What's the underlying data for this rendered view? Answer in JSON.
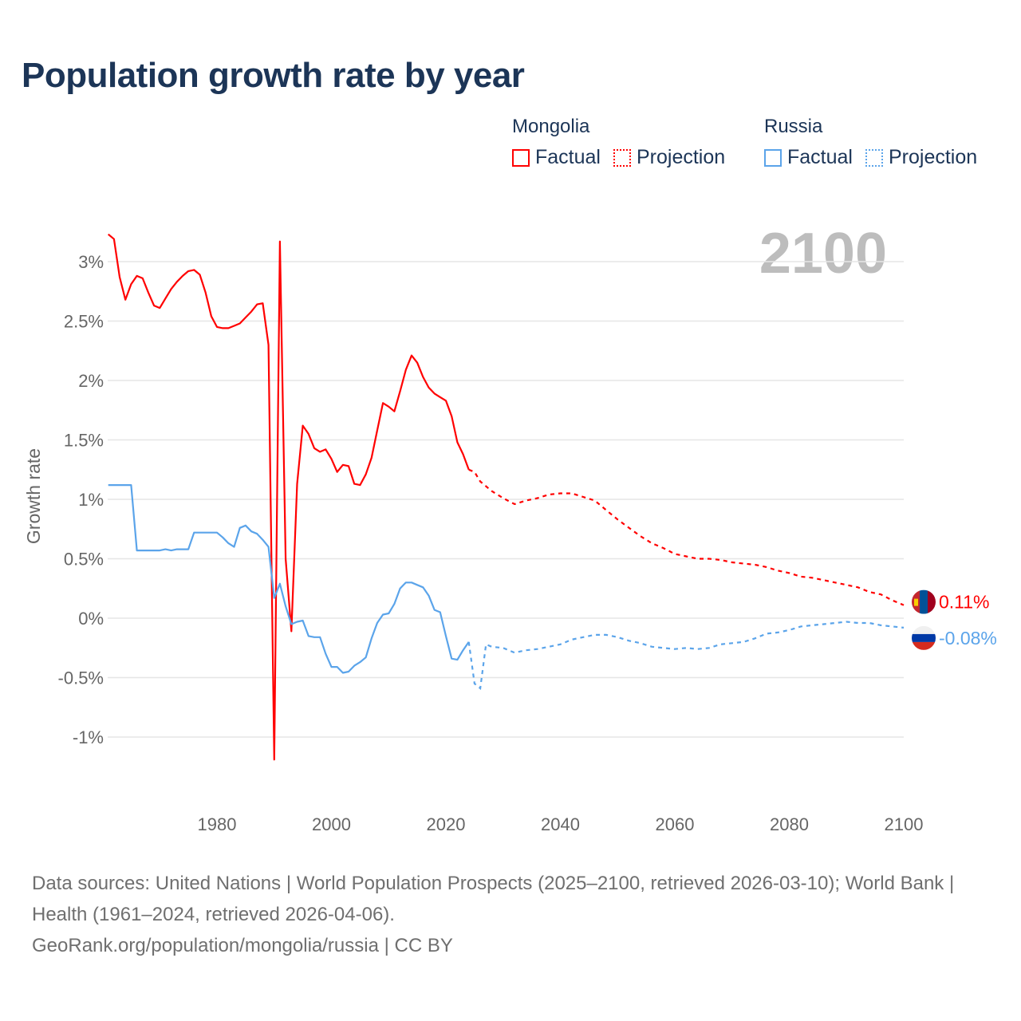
{
  "colors": {
    "mongolia": "#ff0000",
    "russia": "#5ba4ea",
    "title": "#1c3557",
    "axis_text": "#666666",
    "grid": "#e6e6e6",
    "year": "#bdbdbd"
  },
  "legend": {
    "mongolia": {
      "country": "Mongolia",
      "factual": "Factual",
      "projection": "Projection"
    },
    "russia": {
      "country": "Russia",
      "factual": "Factual",
      "projection": "Projection"
    }
  },
  "chart_data": {
    "type": "line",
    "title": "Population growth rate by year",
    "xlabel": "",
    "ylabel": "Growth rate",
    "year_label": "2100",
    "xlim": [
      1961,
      2100
    ],
    "ylim": [
      -1.4,
      3.35
    ],
    "grid": true,
    "legend_position": "top-right",
    "xticks": [
      1980,
      2000,
      2020,
      2040,
      2060,
      2080,
      2100
    ],
    "yticks": [
      {
        "v": 3,
        "label": "3%"
      },
      {
        "v": 2.5,
        "label": "2.5%"
      },
      {
        "v": 2,
        "label": "2%"
      },
      {
        "v": 1.5,
        "label": "1.5%"
      },
      {
        "v": 1,
        "label": "1%"
      },
      {
        "v": 0.5,
        "label": "0.5%"
      },
      {
        "v": 0,
        "label": "0%"
      },
      {
        "v": -0.5,
        "label": "-0.5%"
      },
      {
        "v": -1,
        "label": "-1%"
      }
    ],
    "series": [
      {
        "name": "Mongolia",
        "key": "mongolia",
        "end_label": "0.11%",
        "factual_start_year": 1961,
        "factual": [
          3.23,
          3.19,
          2.87,
          2.68,
          2.81,
          2.88,
          2.86,
          2.74,
          2.63,
          2.61,
          2.69,
          2.77,
          2.83,
          2.88,
          2.92,
          2.93,
          2.89,
          2.74,
          2.54,
          2.45,
          2.44,
          2.44,
          2.46,
          2.48,
          2.53,
          2.58,
          2.64,
          2.65,
          2.3,
          -1.19,
          3.17,
          0.5,
          -0.11,
          1.13,
          1.62,
          1.55,
          1.43,
          1.4,
          1.42,
          1.34,
          1.23,
          1.29,
          1.28,
          1.13,
          1.12,
          1.21,
          1.35,
          1.58,
          1.81,
          1.78,
          1.74,
          1.91,
          2.09,
          2.21,
          2.15,
          2.03,
          1.94,
          1.89,
          1.86,
          1.83,
          1.7,
          1.48,
          1.38,
          1.25
        ],
        "projection": [
          [
            2024,
            1.25
          ],
          [
            2025,
            1.23
          ],
          [
            2026,
            1.15
          ],
          [
            2027,
            1.11
          ],
          [
            2028,
            1.07
          ],
          [
            2030,
            1.01
          ],
          [
            2032,
            0.96
          ],
          [
            2034,
            0.99
          ],
          [
            2036,
            1.01
          ],
          [
            2038,
            1.04
          ],
          [
            2040,
            1.05
          ],
          [
            2042,
            1.05
          ],
          [
            2044,
            1.02
          ],
          [
            2046,
            0.99
          ],
          [
            2048,
            0.91
          ],
          [
            2050,
            0.83
          ],
          [
            2052,
            0.76
          ],
          [
            2054,
            0.69
          ],
          [
            2056,
            0.63
          ],
          [
            2058,
            0.59
          ],
          [
            2060,
            0.54
          ],
          [
            2062,
            0.52
          ],
          [
            2064,
            0.5
          ],
          [
            2066,
            0.5
          ],
          [
            2068,
            0.49
          ],
          [
            2070,
            0.47
          ],
          [
            2072,
            0.46
          ],
          [
            2074,
            0.45
          ],
          [
            2076,
            0.43
          ],
          [
            2078,
            0.4
          ],
          [
            2080,
            0.38
          ],
          [
            2082,
            0.35
          ],
          [
            2084,
            0.34
          ],
          [
            2086,
            0.32
          ],
          [
            2088,
            0.3
          ],
          [
            2090,
            0.28
          ],
          [
            2092,
            0.26
          ],
          [
            2094,
            0.22
          ],
          [
            2096,
            0.2
          ],
          [
            2098,
            0.15
          ],
          [
            2100,
            0.11
          ]
        ]
      },
      {
        "name": "Russia",
        "key": "russia",
        "end_label": "-0.08%",
        "factual_start_year": 1961,
        "factual": [
          1.12,
          1.12,
          1.12,
          1.12,
          1.12,
          0.57,
          0.57,
          0.57,
          0.57,
          0.57,
          0.58,
          0.57,
          0.58,
          0.58,
          0.58,
          0.72,
          0.72,
          0.72,
          0.72,
          0.72,
          0.68,
          0.63,
          0.6,
          0.76,
          0.78,
          0.73,
          0.71,
          0.66,
          0.6,
          0.17,
          0.29,
          0.1,
          -0.05,
          -0.03,
          -0.02,
          -0.15,
          -0.16,
          -0.16,
          -0.3,
          -0.41,
          -0.41,
          -0.46,
          -0.45,
          -0.4,
          -0.37,
          -0.33,
          -0.17,
          -0.04,
          0.03,
          0.04,
          0.12,
          0.25,
          0.3,
          0.3,
          0.28,
          0.26,
          0.19,
          0.07,
          0.05,
          -0.15,
          -0.34,
          -0.35,
          -0.27,
          -0.2
        ],
        "projection": [
          [
            2024,
            -0.2
          ],
          [
            2025,
            -0.55
          ],
          [
            2026,
            -0.59
          ],
          [
            2027,
            -0.22
          ],
          [
            2028,
            -0.24
          ],
          [
            2030,
            -0.25
          ],
          [
            2032,
            -0.29
          ],
          [
            2034,
            -0.27
          ],
          [
            2036,
            -0.26
          ],
          [
            2038,
            -0.24
          ],
          [
            2040,
            -0.22
          ],
          [
            2042,
            -0.18
          ],
          [
            2044,
            -0.16
          ],
          [
            2046,
            -0.14
          ],
          [
            2048,
            -0.14
          ],
          [
            2050,
            -0.16
          ],
          [
            2052,
            -0.19
          ],
          [
            2054,
            -0.21
          ],
          [
            2056,
            -0.24
          ],
          [
            2058,
            -0.25
          ],
          [
            2060,
            -0.26
          ],
          [
            2062,
            -0.25
          ],
          [
            2064,
            -0.26
          ],
          [
            2066,
            -0.25
          ],
          [
            2068,
            -0.22
          ],
          [
            2070,
            -0.21
          ],
          [
            2072,
            -0.2
          ],
          [
            2074,
            -0.17
          ],
          [
            2076,
            -0.13
          ],
          [
            2078,
            -0.12
          ],
          [
            2080,
            -0.1
          ],
          [
            2082,
            -0.07
          ],
          [
            2084,
            -0.06
          ],
          [
            2086,
            -0.05
          ],
          [
            2088,
            -0.04
          ],
          [
            2090,
            -0.03
          ],
          [
            2092,
            -0.04
          ],
          [
            2094,
            -0.04
          ],
          [
            2096,
            -0.06
          ],
          [
            2098,
            -0.07
          ],
          [
            2100,
            -0.08
          ]
        ]
      }
    ]
  },
  "footer": {
    "sources": "Data sources: United Nations | World Population Prospects (2025–2100, retrieved 2026-03-10); World Bank | Health (1961–2024, retrieved 2026-04-06).",
    "link": "GeoRank.org/population/mongolia/russia | CC BY"
  }
}
